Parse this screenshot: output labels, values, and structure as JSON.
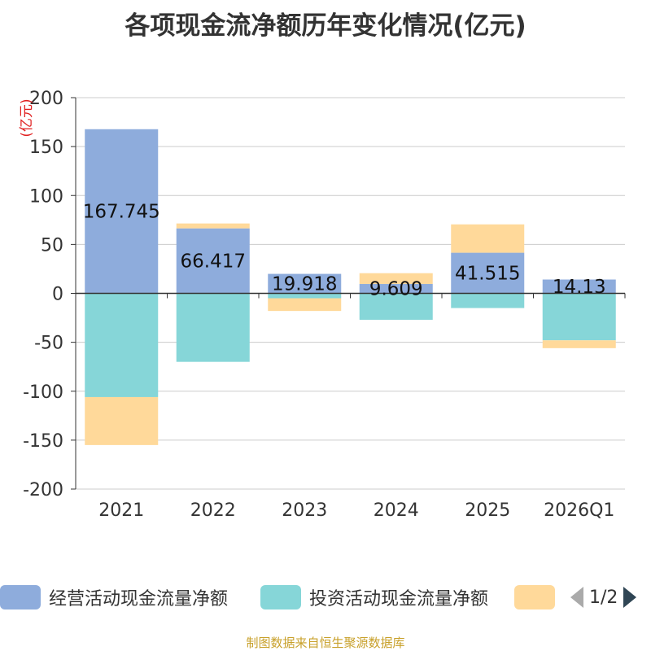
{
  "chart_data": {
    "type": "bar",
    "stacked": true,
    "title": "各项现金流净额历年变化情况(亿元)",
    "unit_label": "(亿元)",
    "categories": [
      "2021",
      "2022",
      "2023",
      "2024",
      "2025",
      "2026Q1"
    ],
    "ylim": [
      -200,
      200
    ],
    "yticks": [
      200,
      150,
      100,
      50,
      0,
      -50,
      -100,
      -150,
      -200
    ],
    "grid": true,
    "legend_position": "bottom",
    "series": [
      {
        "name": "经营活动现金流量净额",
        "color": "#8eacdc",
        "values": [
          167.745,
          66.417,
          19.918,
          9.609,
          41.515,
          14.13
        ],
        "labels": [
          "167.745",
          "66.417",
          "19.918",
          "9.609",
          "41.515",
          "14.13"
        ]
      },
      {
        "name": "投资活动现金流量净额",
        "color": "#86d6d8",
        "values": [
          -106,
          -70,
          -5,
          -27,
          -15,
          -48
        ]
      },
      {
        "name": "",
        "color": "#ffd99a",
        "values": [
          -49,
          5,
          -13,
          11,
          29,
          -8
        ]
      }
    ]
  },
  "legend": {
    "items": [
      {
        "label": "经营活动现金流量净额",
        "color": "#8eacdc"
      },
      {
        "label": "投资活动现金流量净额",
        "color": "#86d6d8"
      },
      {
        "label": "",
        "color": "#ffd99a"
      }
    ],
    "page": "1/2"
  },
  "footer": "制图数据来自恒生聚源数据库"
}
